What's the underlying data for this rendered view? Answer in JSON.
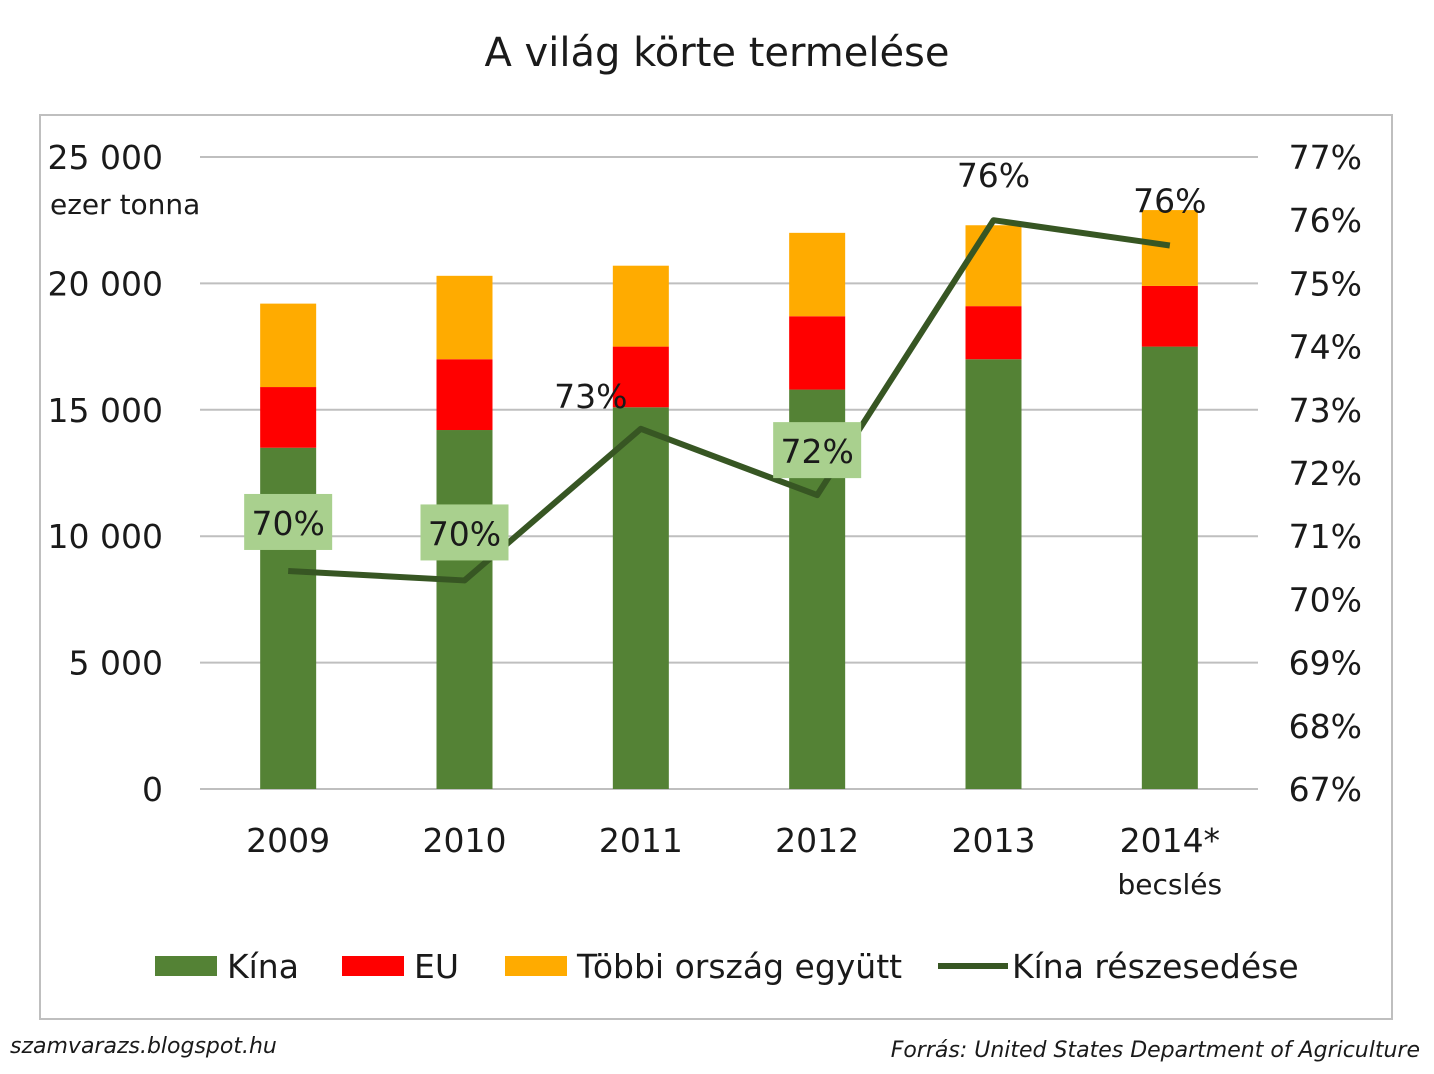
{
  "chart_data": {
    "type": "bar",
    "title": "A világ körte termelése",
    "ylabel": "ezer tonna",
    "ylim": [
      0,
      25000
    ],
    "y_ticks": [
      "0",
      "5 000",
      "10 000",
      "15 000",
      "20 000",
      "25 000"
    ],
    "y2lim": [
      67,
      77
    ],
    "y2_ticks": [
      "67%",
      "68%",
      "69%",
      "70%",
      "71%",
      "72%",
      "73%",
      "74%",
      "75%",
      "76%",
      "77%"
    ],
    "categories": [
      "2009",
      "2010",
      "2011",
      "2012",
      "2013",
      "2014*"
    ],
    "category_sublabels": [
      "",
      "",
      "",
      "",
      "",
      "becslés"
    ],
    "stacked": true,
    "series": [
      {
        "name": "Kína",
        "type": "bar",
        "color": "#548235",
        "values": [
          13500,
          14200,
          15100,
          15800,
          17000,
          17500
        ]
      },
      {
        "name": "EU",
        "type": "bar",
        "color": "#ff0000",
        "values": [
          2400,
          2800,
          2400,
          2900,
          2100,
          2400
        ]
      },
      {
        "name": "Többi ország együtt",
        "type": "bar",
        "color": "#ffab00",
        "values": [
          3300,
          3300,
          3200,
          3300,
          3200,
          3000
        ]
      },
      {
        "name": "Kína részesedése",
        "type": "line",
        "axis": "right",
        "color": "#375623",
        "values": [
          70.45,
          70.3,
          72.7,
          71.65,
          76.0,
          75.6
        ],
        "labels": [
          "70%",
          "70%",
          "73%",
          "72%",
          "76%",
          "76%"
        ],
        "label_boxed": [
          true,
          true,
          false,
          true,
          false,
          false
        ]
      }
    ],
    "legend": "bottom",
    "grid": true
  },
  "footer": {
    "left": "szamvarazs.blogspot.hu",
    "right": "Forrás: United States Department of Agriculture"
  }
}
